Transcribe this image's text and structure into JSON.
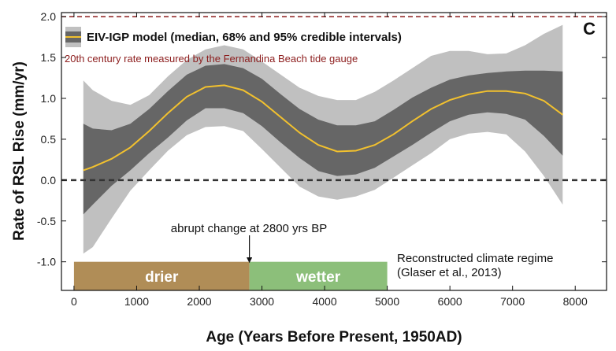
{
  "chart_data": {
    "type": "area",
    "panel_label": "C",
    "xlabel": "Age (Years Before Present, 1950AD)",
    "ylabel": "Rate of RSL Rise (mm/yr)",
    "xlim": [
      -200,
      8500
    ],
    "ylim": [
      -1.35,
      2.05
    ],
    "x_ticks": [
      0,
      1000,
      2000,
      3000,
      4000,
      5000,
      6000,
      7000,
      8000
    ],
    "y_ticks": [
      -1.0,
      -0.5,
      0.0,
      0.5,
      1.0,
      1.5,
      2.0
    ],
    "y_tick_labels": [
      "-1.0",
      "-0.5",
      "0.0",
      "0.5",
      "1.0",
      "1.5",
      "2.0"
    ],
    "legend": {
      "label": "EIV-IGP model (median, 68% and 95% credible intervals)",
      "placement": "top-left"
    },
    "x": [
      150,
      300,
      600,
      900,
      1200,
      1500,
      1800,
      2100,
      2400,
      2700,
      3000,
      3300,
      3600,
      3900,
      4200,
      4500,
      4800,
      5100,
      5400,
      5700,
      6000,
      6300,
      6600,
      6900,
      7200,
      7500,
      7800
    ],
    "series": [
      {
        "name": "median",
        "color": "#f2c12e",
        "values": [
          0.12,
          0.16,
          0.26,
          0.4,
          0.6,
          0.82,
          1.02,
          1.14,
          1.16,
          1.1,
          0.96,
          0.77,
          0.58,
          0.43,
          0.35,
          0.36,
          0.43,
          0.56,
          0.72,
          0.87,
          0.98,
          1.05,
          1.09,
          1.09,
          1.06,
          0.97,
          0.8
        ]
      }
    ],
    "band_68": {
      "color": "#666666",
      "lower": [
        -0.42,
        -0.3,
        -0.07,
        0.12,
        0.33,
        0.52,
        0.73,
        0.88,
        0.88,
        0.82,
        0.66,
        0.46,
        0.27,
        0.11,
        0.05,
        0.07,
        0.15,
        0.29,
        0.43,
        0.58,
        0.72,
        0.8,
        0.83,
        0.81,
        0.74,
        0.54,
        0.3
      ],
      "upper": [
        0.69,
        0.63,
        0.61,
        0.69,
        0.87,
        1.09,
        1.29,
        1.4,
        1.42,
        1.37,
        1.24,
        1.05,
        0.87,
        0.74,
        0.67,
        0.67,
        0.72,
        0.86,
        1.01,
        1.13,
        1.23,
        1.28,
        1.31,
        1.33,
        1.34,
        1.34,
        1.33
      ]
    },
    "band_95": {
      "color": "#c0c0c0",
      "lower": [
        -0.9,
        -0.82,
        -0.47,
        -0.13,
        0.12,
        0.36,
        0.55,
        0.65,
        0.66,
        0.6,
        0.38,
        0.15,
        -0.08,
        -0.2,
        -0.24,
        -0.2,
        -0.12,
        0.03,
        0.18,
        0.33,
        0.5,
        0.57,
        0.59,
        0.56,
        0.35,
        0.05,
        -0.3
      ],
      "upper": [
        1.22,
        1.1,
        0.97,
        0.92,
        1.04,
        1.27,
        1.47,
        1.6,
        1.65,
        1.6,
        1.45,
        1.29,
        1.13,
        1.03,
        0.98,
        0.98,
        1.08,
        1.22,
        1.37,
        1.52,
        1.58,
        1.58,
        1.54,
        1.55,
        1.65,
        1.79,
        1.9
      ]
    },
    "reference_lines": [
      {
        "y": 2.0,
        "color": "#8c1c1c",
        "style": "dashed",
        "label": "20th century rate measured by the Fernandina Beach tide gauge"
      },
      {
        "y": 0.0,
        "color": "#333333",
        "style": "dashed",
        "label": ""
      }
    ],
    "annotation": {
      "label": "abrupt change at 2800 yrs BP",
      "x": 2800
    },
    "climate_regime": {
      "label_line1": "Reconstructed climate regime",
      "label_line2": "(Glaser et al., 2013)",
      "y_top": -1.0,
      "y_bottom": -1.35,
      "segments": [
        {
          "label": "drier",
          "start": 0,
          "end": 2800,
          "color": "#b08d57"
        },
        {
          "label": "wetter",
          "start": 2800,
          "end": 5000,
          "color": "#8cbf7a"
        }
      ]
    }
  }
}
